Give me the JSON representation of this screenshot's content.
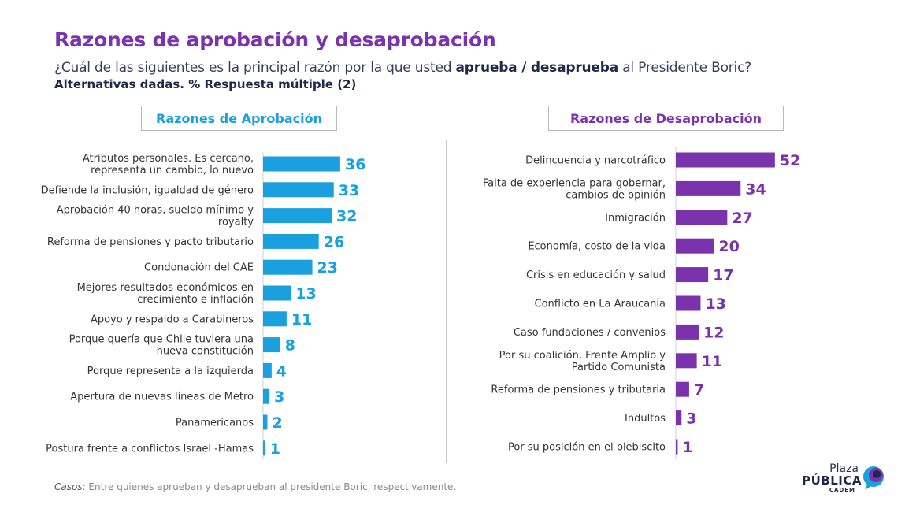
{
  "title": "Razones de aprobación y desaprobación",
  "subtitle": {
    "prefix": "¿Cuál de las siguientes es la principal razón por la que usted ",
    "bold": "aprueba / desaprueba",
    "suffix": " al Presidente Boric?"
  },
  "subtitle2": "Alternativas dadas. % Respuesta múltiple (2)",
  "colors": {
    "approval": "#1aa0de",
    "disapproval": "#7a33ad",
    "title": "#7a33ad"
  },
  "chart_data": [
    {
      "type": "bar",
      "orientation": "horizontal",
      "title": "Razones de Aprobación",
      "categories": [
        "Atributos personales. Es cercano, representa un cambio, lo nuevo",
        "Defiende la inclusión, igualdad de género",
        "Aprobación 40 horas, sueldo mínimo y royalty",
        "Reforma de pensiones y pacto tributario",
        "Condonación del CAE",
        "Mejores resultados económicos en crecimiento e inflación",
        "Apoyo y respaldo a Carabineros",
        "Porque quería que Chile tuviera una nueva constitución",
        "Porque representa a la izquierda",
        "Apertura de nuevas líneas de Metro",
        "Panamericanos",
        "Postura frente a conflictos Israel -Hamas"
      ],
      "category_lines": [
        [
          "Atributos personales. Es cercano,",
          "representa un cambio, lo nuevo"
        ],
        [
          "Defiende la inclusión, igualdad de género"
        ],
        [
          "Aprobación 40 horas, sueldo mínimo y",
          "royalty"
        ],
        [
          "Reforma de pensiones y pacto tributario"
        ],
        [
          "Condonación del CAE"
        ],
        [
          "Mejores resultados económicos en",
          "crecimiento e inflación"
        ],
        [
          "Apoyo y respaldo a Carabineros"
        ],
        [
          "Porque quería que Chile tuviera una",
          "nueva constitución"
        ],
        [
          "Porque representa a la izquierda"
        ],
        [
          "Apertura de nuevas líneas de Metro"
        ],
        [
          "Panamericanos"
        ],
        [
          "Postura frente a conflictos Israel -Hamas"
        ]
      ],
      "values": [
        36,
        33,
        32,
        26,
        23,
        13,
        11,
        8,
        4,
        3,
        2,
        1
      ],
      "color": "#1aa0de"
    },
    {
      "type": "bar",
      "orientation": "horizontal",
      "title": "Razones de Desaprobación",
      "categories": [
        "Delincuencia y narcotráfico",
        "Falta de experiencia para gobernar, cambios de opinión",
        "Inmigración",
        "Economía, costo de la vida",
        "Crisis en educación y salud",
        "Conflicto en La Araucanía",
        "Caso fundaciones / convenios",
        "Por su coalición, Frente Amplio y Partido Comunista",
        "Reforma de pensiones y tributaria",
        "Indultos",
        "Por su posición en el plebiscito"
      ],
      "category_lines": [
        [
          "Delincuencia y narcotráfico"
        ],
        [
          "Falta de experiencia para gobernar,",
          "cambios de opinión"
        ],
        [
          "Inmigración"
        ],
        [
          "Economía, costo de la vida"
        ],
        [
          "Crisis en educación y salud"
        ],
        [
          "Conflicto en La Araucanía"
        ],
        [
          "Caso fundaciones / convenios"
        ],
        [
          "Por su coalición, Frente Amplio y",
          "Partido Comunista"
        ],
        [
          "Reforma de pensiones y tributaria"
        ],
        [
          "Indultos"
        ],
        [
          "Por su posición en el plebiscito"
        ]
      ],
      "values": [
        52,
        34,
        27,
        20,
        17,
        13,
        12,
        11,
        7,
        3,
        1
      ],
      "color": "#7a33ad"
    }
  ],
  "footnote": {
    "label": "Casos",
    "text": ": Entre quienes aprueban y desaprueban al presidente Boric, respectivamente."
  },
  "logo": {
    "line1": "Plaza",
    "line2": "PÚBLICA",
    "line3": "CADEM"
  }
}
